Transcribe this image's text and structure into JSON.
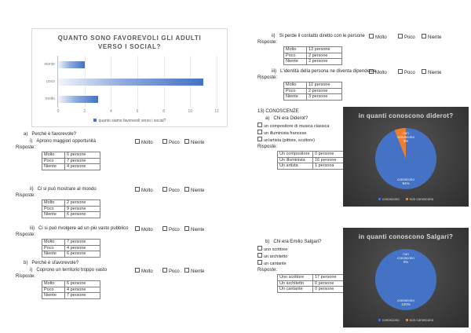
{
  "chart_data": [
    {
      "type": "bar",
      "orientation": "horizontal",
      "title": "QUANTO SONO FAVOREVOLI GLI ADULTI VERSO I SOCIAL?",
      "categories": [
        "niente",
        "poco",
        "molto"
      ],
      "values": [
        2,
        11,
        3
      ],
      "xlim": [
        0,
        12
      ],
      "xticks": [
        0,
        2,
        4,
        6,
        8,
        10,
        12
      ],
      "legend": "quanto siamo favorevoli verso i social?",
      "legend_position": "bottom",
      "bar_color": "#4472c4",
      "grid": true
    },
    {
      "type": "pie",
      "title": "in quanti conoscono diderot?",
      "labels": [
        "conoscono",
        "non conoscono"
      ],
      "values": [
        94,
        6
      ],
      "unit": "%",
      "colors": [
        "#4472c4",
        "#ed7d31"
      ],
      "slice_labels": [
        "conoscono\n94%",
        "non\nconoscono\n6%"
      ],
      "legend": [
        "conoscono",
        "non conoscono"
      ],
      "legend_position": "bottom",
      "background": "#3d3d3d"
    },
    {
      "type": "pie",
      "title": "in quanti conoscono Salgari?",
      "labels": [
        "conoscono",
        "non conoscono"
      ],
      "values": [
        100,
        0
      ],
      "unit": "%",
      "colors": [
        "#4472c4",
        "#ed7d31"
      ],
      "slice_labels": [
        "conoscono\n100%",
        "non\nconoscono\n0%"
      ],
      "legend": [
        "conoscono",
        "non conoscono"
      ],
      "legend_position": "bottom",
      "background": "#3d3d3d"
    }
  ],
  "survey": {
    "checkbox_options": [
      "Molto",
      "Poco",
      "Niente"
    ],
    "risposte_label": "Risposte:",
    "left_blocks": [
      {
        "id": "a1",
        "section_label": "a)",
        "section_text": "Perché è favorevole?",
        "q_label": "i)",
        "q_text": "Aprono maggiori opportunità",
        "answers": [
          [
            "Molto",
            "6 persone"
          ],
          [
            "Poco",
            "7 persone"
          ],
          [
            "Niente",
            "4 persone"
          ]
        ]
      },
      {
        "id": "a2",
        "q_label": "ii)",
        "q_text": "Ci si può mostrare al mondo",
        "answers": [
          [
            "Molto",
            "2 persone"
          ],
          [
            "Poco",
            "9 persone"
          ],
          [
            "Niente",
            "6 persone"
          ]
        ]
      },
      {
        "id": "a3",
        "q_label": "iii)",
        "q_text": "Ci si può rivolgere ad un più vasto pubblico",
        "answers": [
          [
            "Molto",
            "7 persone"
          ],
          [
            "Poco",
            "4 persone"
          ],
          [
            "Niente",
            "6 persone"
          ]
        ]
      },
      {
        "id": "b1",
        "section_label": "b)",
        "section_text": "Perché è sfavorevole?",
        "q_label": "i)",
        "q_text": "Coprono un territorio troppo vasto",
        "answers": [
          [
            "Molto",
            "6 persone"
          ],
          [
            "Poco",
            "4 persone"
          ],
          [
            "Niente",
            "7 persone"
          ]
        ]
      }
    ],
    "right_blocks": [
      {
        "id": "r1",
        "q_label": "ii)",
        "q_text": "Si perde il contatto diretto con le persone",
        "answers": [
          [
            "Molto",
            "13 persone"
          ],
          [
            "Poco",
            "2 persone"
          ],
          [
            "Niente",
            "2 persone"
          ]
        ]
      },
      {
        "id": "r2",
        "q_label": "iii)",
        "q_text": "L'identità della persona ne diventa dipendente",
        "answers": [
          [
            "Molto",
            "12 persone"
          ],
          [
            "Poco",
            "2 persone"
          ],
          [
            "Niente",
            "3 persone"
          ]
        ]
      }
    ],
    "conoscenze": {
      "heading": "13) CONOSCENZE",
      "questions": [
        {
          "id": "k1",
          "q_label": "a)",
          "q_text": "Chi era Diderot?",
          "options": [
            "un compositore di musica classica",
            "un illuminista francese",
            "un'artista (pittore, scultore)"
          ],
          "answers": [
            [
              "Un compositore",
              "0 persone"
            ],
            [
              "Un illuminista",
              "16 persone"
            ],
            [
              "Un artista",
              "1 persona"
            ]
          ]
        },
        {
          "id": "k2",
          "q_label": "b)",
          "q_text": "Chi era Emilio Salgari?",
          "options": [
            "uno scrittore",
            "un architetto",
            "un cantante"
          ],
          "answers": [
            [
              "Uno scrittore",
              "17 persone"
            ],
            [
              "Un architetto",
              "0 persone"
            ],
            [
              "Un cantante",
              "0 persone"
            ]
          ]
        }
      ]
    }
  }
}
